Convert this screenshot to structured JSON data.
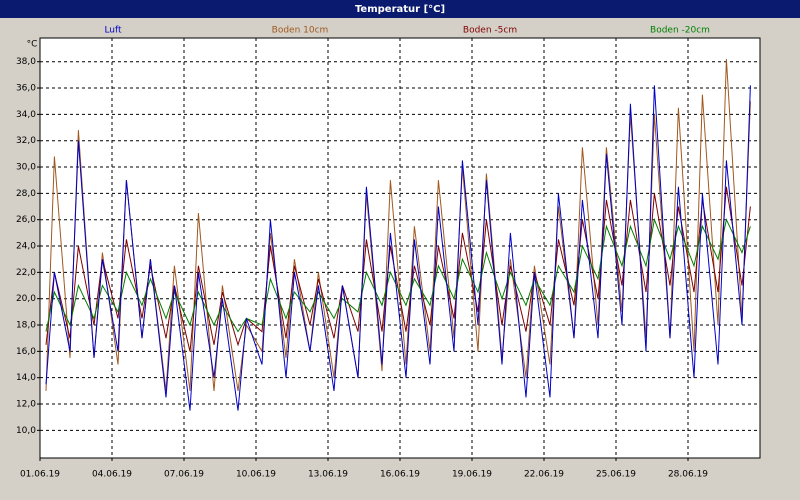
{
  "chart_data": {
    "type": "line",
    "title": "Temperatur [°C]",
    "y_label": "°C",
    "legend": "top",
    "grid": true,
    "x": [
      0.25,
      0.6,
      1.25,
      1.6,
      2.25,
      2.6,
      3.25,
      3.6,
      4.25,
      4.6,
      5.25,
      5.6,
      6.25,
      6.6,
      7.25,
      7.6,
      8.25,
      8.6,
      9.25,
      9.6,
      10.25,
      10.6,
      11.25,
      11.6,
      12.25,
      12.6,
      13.25,
      13.6,
      14.25,
      14.6,
      15.25,
      15.6,
      16.25,
      16.6,
      17.25,
      17.6,
      18.25,
      18.6,
      19.25,
      19.6,
      20.25,
      20.6,
      21.25,
      21.6,
      22.25,
      22.6,
      23.25,
      23.6,
      24.25,
      24.6,
      25.25,
      25.6,
      26.25,
      26.6,
      27.25,
      27.6,
      28.25,
      28.6,
      29.25,
      29.6
    ],
    "xlim": [
      0,
      30
    ],
    "xticks": [
      {
        "value": 0,
        "label": "01.06.19"
      },
      {
        "value": 3,
        "label": "04.06.19"
      },
      {
        "value": 6,
        "label": "07.06.19"
      },
      {
        "value": 9,
        "label": "10.06.19"
      },
      {
        "value": 12,
        "label": "13.06.19"
      },
      {
        "value": 15,
        "label": "16.06.19"
      },
      {
        "value": 18,
        "label": "19.06.19"
      },
      {
        "value": 21,
        "label": "22.06.19"
      },
      {
        "value": 24,
        "label": "25.06.19"
      },
      {
        "value": 27,
        "label": "28.06.19"
      }
    ],
    "ylim": [
      7.9,
      39.8
    ],
    "yticks": [
      {
        "value": 10,
        "label": "10,0"
      },
      {
        "value": 12,
        "label": "12,0"
      },
      {
        "value": 14,
        "label": "14,0"
      },
      {
        "value": 16,
        "label": "16,0"
      },
      {
        "value": 18,
        "label": "18,0"
      },
      {
        "value": 20,
        "label": "20,0"
      },
      {
        "value": 22,
        "label": "22,0"
      },
      {
        "value": 24,
        "label": "24,0"
      },
      {
        "value": 26,
        "label": "26,0"
      },
      {
        "value": 28,
        "label": "28,0"
      },
      {
        "value": 30,
        "label": "30,0"
      },
      {
        "value": 32,
        "label": "32,0"
      },
      {
        "value": 34,
        "label": "34,0"
      },
      {
        "value": 36,
        "label": "36,0"
      },
      {
        "value": 38,
        "label": "38,0"
      }
    ],
    "series": [
      {
        "name": "Luft",
        "color": "#0000c8",
        "values": [
          13.5,
          22,
          16,
          32,
          15.5,
          23,
          16,
          29,
          17,
          23,
          12.5,
          21,
          11.5,
          22,
          14,
          20,
          11.5,
          18.5,
          15,
          26,
          14,
          22,
          16,
          21,
          13,
          21,
          14,
          28.5,
          15,
          25,
          14,
          24.5,
          15,
          27,
          16,
          30.5,
          18,
          29,
          15,
          25,
          12.5,
          22,
          12.5,
          28,
          17,
          27.5,
          17,
          31,
          18,
          34.8,
          16,
          36.2,
          17,
          28.5,
          14,
          28,
          15,
          30.5,
          18,
          36.2
        ]
      },
      {
        "name": "Boden 10cm",
        "color": "#a0581e",
        "values": [
          13,
          30.8,
          15.5,
          32.8,
          15.5,
          23.5,
          15,
          29,
          17,
          23,
          13,
          22.5,
          13,
          26.5,
          13,
          21,
          13,
          18,
          16,
          25,
          15.5,
          23,
          16,
          22,
          14,
          21,
          14,
          28,
          14.5,
          29,
          15,
          25.5,
          16,
          29,
          17,
          30,
          16,
          29.5,
          15.5,
          23,
          14,
          22.5,
          15,
          27,
          17,
          31.5,
          18,
          31.5,
          19,
          34,
          17,
          34,
          17,
          34.5,
          16,
          35.5,
          18,
          38.2,
          18.5,
          35
        ]
      },
      {
        "name": "Boden -5cm",
        "color": "#800000",
        "values": [
          16.5,
          22,
          17,
          24,
          18,
          23,
          18.5,
          24.5,
          18.5,
          22.5,
          17,
          21,
          16,
          22.5,
          16.5,
          20.5,
          16.5,
          18.5,
          17.5,
          24,
          17,
          22.5,
          18,
          21.5,
          17,
          21,
          17.5,
          24.5,
          17.5,
          24,
          17.5,
          22.5,
          18,
          24,
          18.5,
          25,
          19,
          26,
          18,
          22.5,
          17.5,
          22,
          18,
          24.5,
          19.5,
          26,
          20,
          27.5,
          21,
          27.5,
          20.5,
          28,
          21,
          27,
          20.5,
          27.5,
          20.5,
          28.5,
          21,
          27
        ]
      },
      {
        "name": "Boden -20cm",
        "color": "#008000",
        "values": [
          17.5,
          20.5,
          18,
          21,
          18.5,
          21,
          19,
          22,
          19.5,
          21.5,
          18.5,
          20.5,
          18,
          20.5,
          18,
          19.5,
          17.5,
          18.5,
          18,
          21.5,
          18.5,
          20.5,
          19,
          20.5,
          18.5,
          20,
          19,
          22,
          19.5,
          22,
          19.5,
          21.5,
          19.5,
          22.5,
          20,
          23,
          20.5,
          23.5,
          20,
          22,
          19.5,
          21.5,
          19.5,
          22.5,
          20.5,
          24,
          21.5,
          25.5,
          22.5,
          25.5,
          22.5,
          26,
          23,
          25.5,
          22.5,
          25.5,
          23,
          26,
          23.5,
          25.5
        ]
      }
    ]
  }
}
